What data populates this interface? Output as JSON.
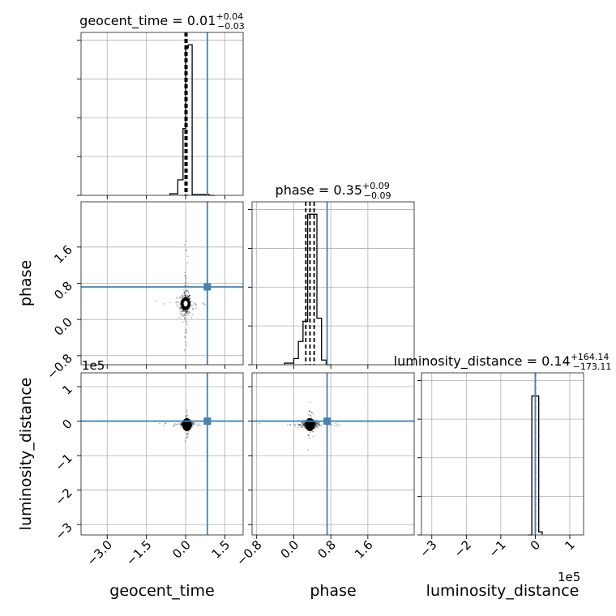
{
  "figure": {
    "type": "corner-plot",
    "truth_color": "#4682b4",
    "line_color": "#000000"
  },
  "params": [
    "geocent_time",
    "phase",
    "luminosity_distance"
  ],
  "titles": [
    {
      "main": "geocent_time = 0.01",
      "sup": "+0.04",
      "sub": "−0.03"
    },
    {
      "main": "phase = 0.35",
      "sup": "+0.09",
      "sub": "−0.09"
    },
    {
      "main": "luminosity_distance = 0.14",
      "sup": "+164.14",
      "sub": "−173.11"
    }
  ],
  "axis_labels": {
    "x": [
      "geocent_time",
      "phase",
      "luminosity_distance"
    ],
    "y": [
      "phase",
      "luminosity_distance"
    ]
  },
  "offset_texts": {
    "ld_y": "1e5",
    "ld_x": "1e5"
  },
  "chart_data": [
    {
      "type": "histogram",
      "param": "geocent_time",
      "xlim": [
        -4.0,
        2.2
      ],
      "bins": [
        -0.6,
        -0.3,
        -0.1,
        0.0,
        0.1,
        0.2,
        0.25,
        0.9,
        1.1
      ],
      "counts": [
        0.01,
        0.1,
        0.43,
        0.95,
        0.97,
        0.97,
        0.005,
        0.0
      ],
      "quantiles": [
        -0.02,
        0.01,
        0.05
      ],
      "truth": 0.83
    },
    {
      "type": "histogram",
      "param": "phase",
      "xlim": [
        -0.9,
        2.6
      ],
      "bins": [
        -0.2,
        0.0,
        0.1,
        0.2,
        0.3,
        0.4,
        0.5,
        0.6,
        0.7,
        0.8
      ],
      "counts": [
        0.01,
        0.04,
        0.15,
        0.28,
        0.97,
        0.97,
        0.3,
        0.03,
        0.0
      ],
      "quantiles": [
        0.26,
        0.35,
        0.44
      ],
      "truth": 0.72
    },
    {
      "type": "histogram",
      "param": "luminosity_distance",
      "xlim": [
        -3.3,
        1.4
      ],
      "x_scale": "1e5",
      "bins": [
        -0.2,
        -0.1,
        0.0,
        0.1,
        0.2
      ],
      "counts": [
        0.0,
        0.9,
        0.9,
        0.02
      ],
      "quantiles": [
        0.0
      ],
      "truth": 0.0
    },
    {
      "type": "scatter",
      "x": "geocent_time",
      "y": "phase",
      "xlim": [
        -4.0,
        2.2
      ],
      "ylim": [
        -1.0,
        2.6
      ],
      "center": [
        0.0,
        0.35
      ],
      "spread": [
        0.1,
        0.12
      ],
      "truth": [
        0.83,
        0.72
      ]
    },
    {
      "type": "scatter",
      "x": "geocent_time",
      "y": "luminosity_distance",
      "xlim": [
        -4.0,
        2.2
      ],
      "ylim": [
        -3.3,
        1.4
      ],
      "y_scale": "1e5",
      "center": [
        0.05,
        -0.1
      ],
      "spread": [
        0.1,
        0.05
      ],
      "truth": [
        0.83,
        0.0
      ]
    },
    {
      "type": "scatter",
      "x": "phase",
      "y": "luminosity_distance",
      "xlim": [
        -0.9,
        2.6
      ],
      "ylim": [
        -3.3,
        1.4
      ],
      "y_scale": "1e5",
      "center": [
        0.35,
        -0.1
      ],
      "spread": [
        0.09,
        0.05
      ],
      "truth": [
        0.72,
        0.0
      ]
    }
  ],
  "ticks": {
    "geocent_time": {
      "values": [
        -3.0,
        -1.5,
        0.0,
        1.5
      ],
      "labels": [
        "−3.0",
        "−1.5",
        "0.0",
        "1.5"
      ]
    },
    "phase": {
      "values": [
        -0.8,
        0.0,
        0.8,
        1.6
      ],
      "labels": [
        "−0.8",
        "0.0",
        "0.8",
        "1.6"
      ]
    },
    "luminosity_distance": {
      "values": [
        -3,
        -2,
        -1,
        0,
        1
      ],
      "labels": [
        "−3",
        "−2",
        "−1",
        "0",
        "1"
      ]
    }
  }
}
